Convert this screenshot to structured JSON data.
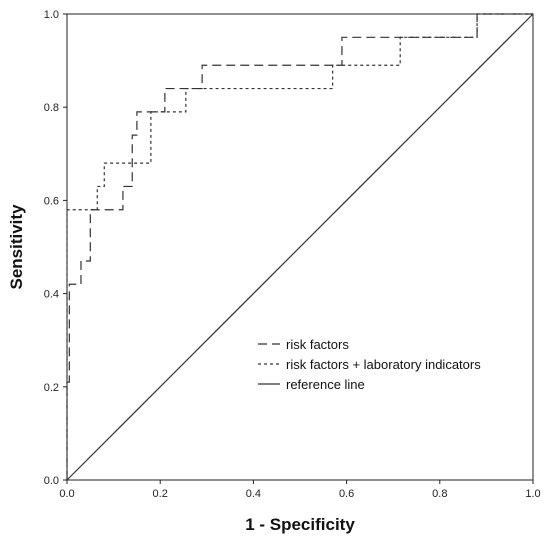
{
  "chart_data": {
    "type": "line",
    "title": "",
    "xlabel": "1 - Specificity",
    "ylabel": "Sensitivity",
    "xlim": [
      0,
      1
    ],
    "ylim": [
      0,
      1
    ],
    "xticks": [
      "0.0",
      "0.2",
      "0.4",
      "0.6",
      "0.8",
      "1.0"
    ],
    "yticks": [
      "0.0",
      "0.2",
      "0.4",
      "0.6",
      "0.8",
      "1.0"
    ],
    "grid": false,
    "legend_position": "bottom-right",
    "series": [
      {
        "name": "risk factors",
        "style": "long-dash",
        "color": "#333333",
        "points": [
          [
            0,
            0
          ],
          [
            0,
            0.21
          ],
          [
            0.005,
            0.21
          ],
          [
            0.005,
            0.42
          ],
          [
            0.03,
            0.42
          ],
          [
            0.03,
            0.47
          ],
          [
            0.05,
            0.47
          ],
          [
            0.05,
            0.58
          ],
          [
            0.12,
            0.58
          ],
          [
            0.12,
            0.63
          ],
          [
            0.14,
            0.63
          ],
          [
            0.14,
            0.74
          ],
          [
            0.15,
            0.74
          ],
          [
            0.15,
            0.79
          ],
          [
            0.21,
            0.79
          ],
          [
            0.21,
            0.84
          ],
          [
            0.29,
            0.84
          ],
          [
            0.29,
            0.89
          ],
          [
            0.59,
            0.89
          ],
          [
            0.59,
            0.95
          ],
          [
            0.88,
            0.95
          ],
          [
            0.88,
            1.0
          ],
          [
            1.0,
            1.0
          ]
        ]
      },
      {
        "name": "risk factors + laboratory indicators",
        "style": "short-dash",
        "color": "#333333",
        "points": [
          [
            0,
            0
          ],
          [
            0,
            0.58
          ],
          [
            0.065,
            0.58
          ],
          [
            0.065,
            0.63
          ],
          [
            0.08,
            0.63
          ],
          [
            0.08,
            0.68
          ],
          [
            0.18,
            0.68
          ],
          [
            0.18,
            0.79
          ],
          [
            0.255,
            0.79
          ],
          [
            0.255,
            0.84
          ],
          [
            0.57,
            0.84
          ],
          [
            0.57,
            0.89
          ],
          [
            0.715,
            0.89
          ],
          [
            0.715,
            0.95
          ],
          [
            0.88,
            0.95
          ],
          [
            0.88,
            1.0
          ],
          [
            1.0,
            1.0
          ]
        ]
      },
      {
        "name": "reference line",
        "style": "solid",
        "color": "#333333",
        "points": [
          [
            0,
            0
          ],
          [
            1,
            1
          ]
        ]
      }
    ]
  }
}
